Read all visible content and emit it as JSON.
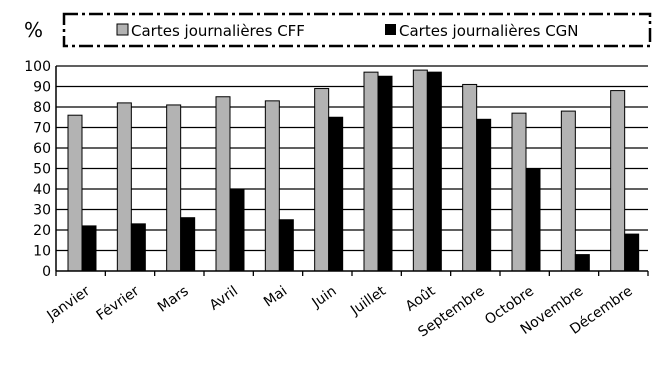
{
  "chart_data": {
    "type": "bar",
    "ylabel": "%",
    "ylim": [
      0,
      100
    ],
    "yticks": [
      0,
      10,
      20,
      30,
      40,
      50,
      60,
      70,
      80,
      90,
      100
    ],
    "grid": true,
    "legend_position": "top",
    "categories": [
      "Janvier",
      "Février",
      "Mars",
      "Avril",
      "Mai",
      "Juin",
      "Juillet",
      "Août",
      "Septembre",
      "Octobre",
      "Novembre",
      "Décembre"
    ],
    "series": [
      {
        "name": "Cartes journalières CFF",
        "color": "#b3b3b3",
        "values": [
          76,
          82,
          81,
          85,
          83,
          89,
          97,
          98,
          91,
          77,
          78,
          88
        ]
      },
      {
        "name": "Cartes journalières CGN",
        "color": "#000000",
        "values": [
          22,
          23,
          26,
          40,
          25,
          75,
          95,
          97,
          74,
          50,
          8,
          18
        ]
      }
    ]
  }
}
